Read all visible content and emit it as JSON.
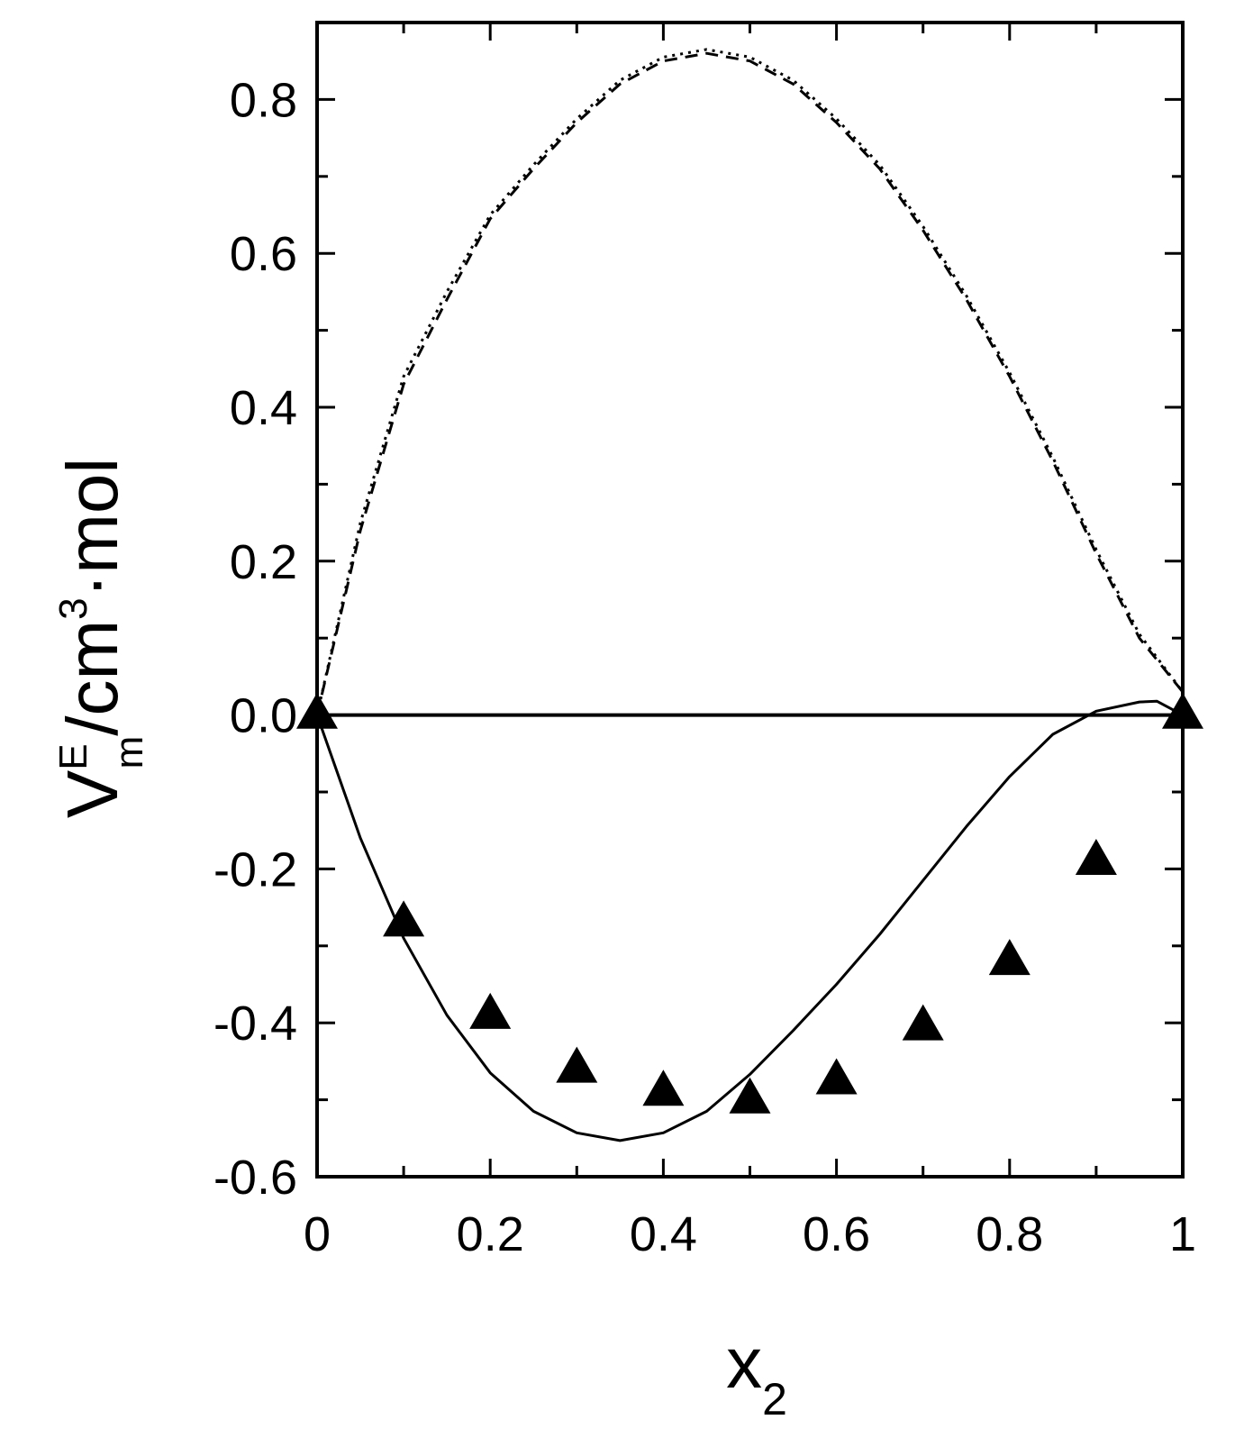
{
  "chart_data": {
    "type": "line",
    "xlabel": {
      "main": "x",
      "sub": "2"
    },
    "ylabel": {
      "main": "V",
      "sup": "E",
      "sub": "m",
      "rest": "/cm",
      "rest_sup": "3",
      "tail": "·mol"
    },
    "xlim": [
      0,
      1
    ],
    "ylim": [
      -0.6,
      0.9
    ],
    "x_ticks": [
      {
        "value": 0,
        "label": "0"
      },
      {
        "value": 0.2,
        "label": "0.2"
      },
      {
        "value": 0.4,
        "label": "0.4"
      },
      {
        "value": 0.6,
        "label": "0.6"
      },
      {
        "value": 0.8,
        "label": "0.8"
      },
      {
        "value": 1,
        "label": "1"
      }
    ],
    "x_minor_ticks": [
      0.1,
      0.3,
      0.5,
      0.7,
      0.9
    ],
    "y_ticks": [
      {
        "value": -0.6,
        "label": "-0.6"
      },
      {
        "value": -0.4,
        "label": "-0.4"
      },
      {
        "value": -0.2,
        "label": "-0.2"
      },
      {
        "value": 0.0,
        "label": "0.0"
      },
      {
        "value": 0.2,
        "label": "0.2"
      },
      {
        "value": 0.4,
        "label": "0.4"
      },
      {
        "value": 0.6,
        "label": "0.6"
      },
      {
        "value": 0.8,
        "label": "0.8"
      }
    ],
    "y_minor_ticks": [
      -0.5,
      -0.3,
      -0.1,
      0.1,
      0.3,
      0.5,
      0.7
    ],
    "zero_line": true,
    "grid": false,
    "series": [
      {
        "type": "scatter",
        "marker": "triangle",
        "color": "#000000",
        "points": [
          {
            "x": 0.0,
            "y": 0.0
          },
          {
            "x": 0.1,
            "y": -0.27
          },
          {
            "x": 0.2,
            "y": -0.39
          },
          {
            "x": 0.3,
            "y": -0.46
          },
          {
            "x": 0.4,
            "y": -0.49
          },
          {
            "x": 0.5,
            "y": -0.5
          },
          {
            "x": 0.6,
            "y": -0.475
          },
          {
            "x": 0.7,
            "y": -0.405
          },
          {
            "x": 0.8,
            "y": -0.32
          },
          {
            "x": 0.9,
            "y": -0.19
          },
          {
            "x": 1.0,
            "y": 0.0
          }
        ]
      },
      {
        "type": "line",
        "style": "solid",
        "color": "#000000",
        "x": [
          0,
          0.05,
          0.1,
          0.15,
          0.2,
          0.25,
          0.3,
          0.35,
          0.4,
          0.45,
          0.5,
          0.55,
          0.6,
          0.65,
          0.7,
          0.75,
          0.8,
          0.85,
          0.9,
          0.95,
          0.97,
          1.0
        ],
        "y": [
          0,
          -0.16,
          -0.29,
          -0.39,
          -0.465,
          -0.515,
          -0.543,
          -0.553,
          -0.543,
          -0.515,
          -0.467,
          -0.41,
          -0.35,
          -0.285,
          -0.215,
          -0.145,
          -0.08,
          -0.025,
          0.005,
          0.017,
          0.018,
          0.0
        ]
      },
      {
        "type": "line",
        "style": "dashed",
        "color": "#000000",
        "x": [
          0,
          0.05,
          0.1,
          0.15,
          0.2,
          0.25,
          0.3,
          0.35,
          0.4,
          0.45,
          0.5,
          0.55,
          0.6,
          0.65,
          0.7,
          0.75,
          0.8,
          0.85,
          0.9,
          0.95,
          1.0
        ],
        "y": [
          0,
          0.24,
          0.43,
          0.54,
          0.645,
          0.71,
          0.77,
          0.82,
          0.85,
          0.86,
          0.85,
          0.82,
          0.77,
          0.71,
          0.63,
          0.54,
          0.44,
          0.33,
          0.21,
          0.1,
          0.03
        ]
      },
      {
        "type": "line",
        "style": "dotted",
        "color": "#000000",
        "x": [
          0,
          0.05,
          0.1,
          0.15,
          0.2,
          0.25,
          0.3,
          0.35,
          0.4,
          0.45,
          0.5,
          0.55,
          0.6,
          0.65,
          0.7,
          0.75,
          0.8,
          0.85,
          0.9,
          0.95,
          1.0
        ],
        "y": [
          0,
          0.25,
          0.44,
          0.55,
          0.65,
          0.715,
          0.775,
          0.825,
          0.855,
          0.865,
          0.855,
          0.825,
          0.775,
          0.715,
          0.635,
          0.545,
          0.445,
          0.335,
          0.215,
          0.105,
          0.03
        ]
      }
    ]
  }
}
